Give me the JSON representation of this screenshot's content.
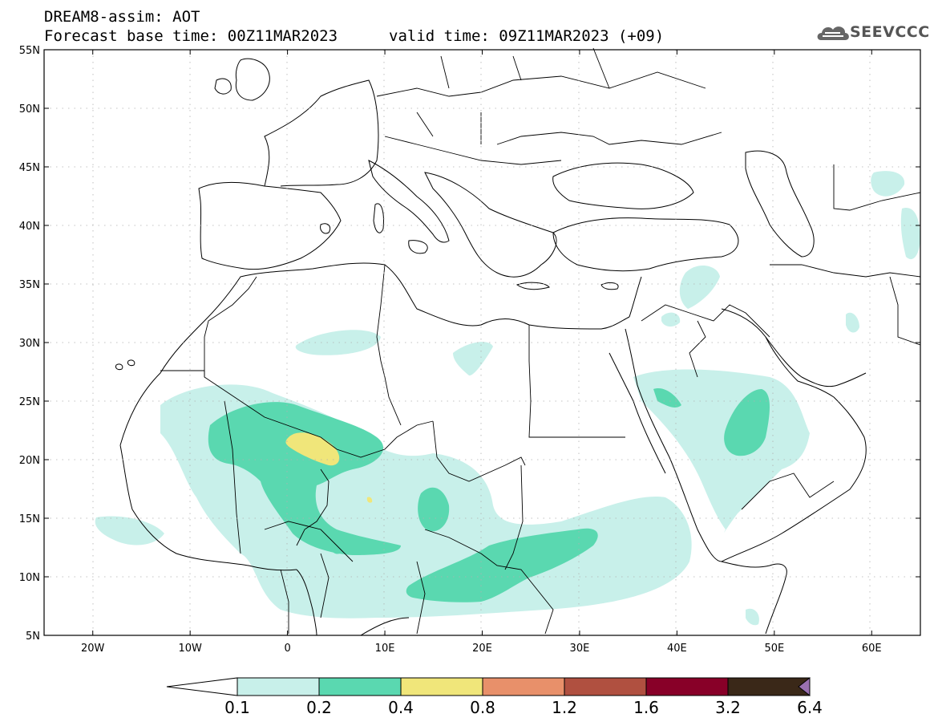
{
  "header": {
    "title": "DREAM8-assim: AOT",
    "base_time": "Forecast base time: 00Z11MAR2023",
    "valid_time": "valid time: 09Z11MAR2023 (+09)"
  },
  "logo": {
    "text": "SEEVCCC"
  },
  "axes": {
    "lat_labels": [
      "55N",
      "50N",
      "45N",
      "40N",
      "35N",
      "30N",
      "25N",
      "20N",
      "15N",
      "10N",
      "5N"
    ],
    "lon_labels": [
      "20W",
      "10W",
      "0",
      "10E",
      "20E",
      "30E",
      "40E",
      "50E",
      "60E"
    ],
    "lat_values": [
      55,
      50,
      45,
      40,
      35,
      30,
      25,
      20,
      15,
      10,
      5
    ],
    "lon_values": [
      -20,
      -10,
      0,
      10,
      20,
      30,
      40,
      50,
      60
    ],
    "lon_range": [
      -25,
      65
    ],
    "lat_range": [
      5,
      55
    ]
  },
  "colorbar": {
    "colors": [
      "#c8f0ea",
      "#5ad8b0",
      "#f0e67a",
      "#e8906a",
      "#b05040",
      "#880028",
      "#3a2818",
      "#9a70b0"
    ],
    "labels": [
      "0.1",
      "0.2",
      "0.4",
      "0.8",
      "1.2",
      "1.6",
      "3.2",
      "6.4"
    ]
  }
}
